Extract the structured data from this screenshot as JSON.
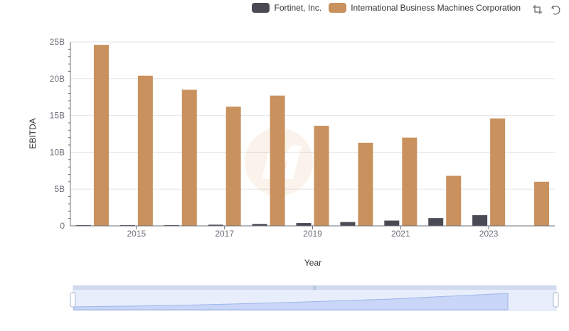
{
  "legend": {
    "items": [
      {
        "label": "Fortinet, Inc.",
        "color": "#4a4a55"
      },
      {
        "label": "International Business Machines Corporation",
        "color": "#c9915e"
      }
    ]
  },
  "toolbox": {
    "icons": [
      "zoom-icon",
      "restore-icon"
    ]
  },
  "chart_data": {
    "type": "bar",
    "xlabel": "Year",
    "ylabel": "EBITDA",
    "categories": [
      "2014",
      "2015",
      "2016",
      "2017",
      "2018",
      "2019",
      "2020",
      "2021",
      "2022",
      "2023",
      "2024"
    ],
    "x_tick_labels": [
      "2015",
      "2017",
      "2019",
      "2021",
      "2023"
    ],
    "y_tick_labels": [
      "0",
      "5B",
      "10B",
      "15B",
      "20B",
      "25B"
    ],
    "ylim": [
      0,
      25000000000
    ],
    "grid": true,
    "legend_position": "top-right",
    "series": [
      {
        "name": "Fortinet, Inc.",
        "color": "#4a4a55",
        "values": [
          60000000,
          45000000,
          80000000,
          160000000,
          260000000,
          380000000,
          520000000,
          720000000,
          1050000000,
          1450000000,
          0
        ]
      },
      {
        "name": "International Business Machines Corporation",
        "color": "#c9915e",
        "values": [
          24600000000,
          20400000000,
          18500000000,
          16200000000,
          17700000000,
          13600000000,
          11300000000,
          12000000000,
          6800000000,
          14600000000,
          6000000000
        ]
      }
    ],
    "datazoom": {
      "start_percent": 0,
      "end_percent": 100
    }
  }
}
